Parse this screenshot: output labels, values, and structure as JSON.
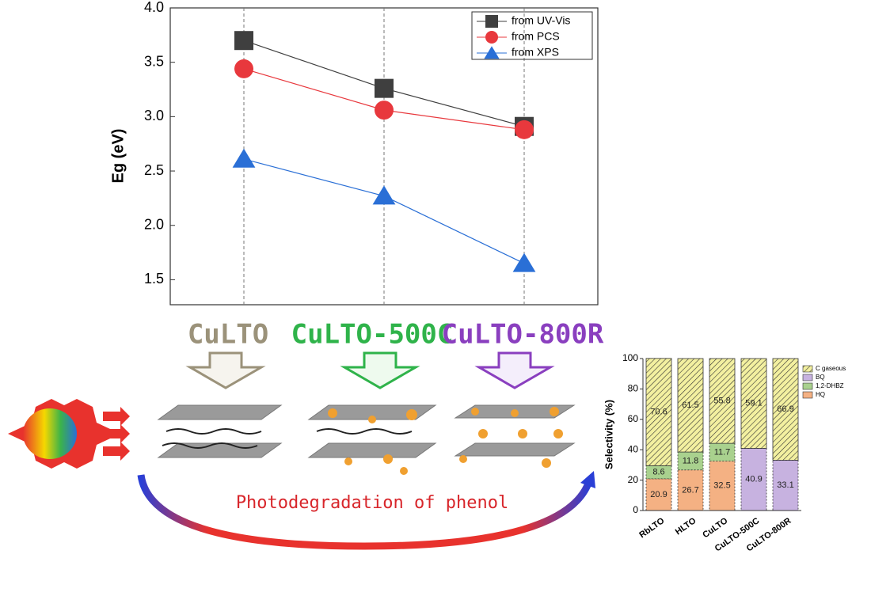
{
  "chart_data": [
    {
      "type": "line",
      "ylabel": "Eg (eV)",
      "categories": [
        null,
        null,
        null
      ],
      "ylim": [
        1.27,
        4.0
      ],
      "yticks": [
        1.5,
        {
          "value": 2,
          "label": "2.0"
        },
        2.5,
        {
          "value": 3,
          "label": "3.0"
        },
        3.5,
        {
          "value": 4,
          "label": "4.0"
        }
      ],
      "grid": true,
      "legend": "upper right",
      "series": [
        {
          "name": "from UV-Vis",
          "color": "#3f3f3f",
          "marker": "square",
          "values": [
            3.7,
            3.26,
            2.91
          ]
        },
        {
          "name": "from PCS",
          "color": "#e8383d",
          "marker": "circle",
          "values": [
            3.44,
            3.06,
            2.88
          ]
        },
        {
          "name": "from XPS",
          "color": "#2a6fd6",
          "marker": "triangle",
          "values": [
            2.61,
            2.27,
            1.65
          ]
        }
      ]
    },
    {
      "type": "bar",
      "stacked": true,
      "ylabel": "Selectivity (%)",
      "categories": [
        "RbLTO",
        "HLTO",
        "CuLTO",
        "CuLTO-500C",
        "CuLTO-800R"
      ],
      "ylim": [
        0,
        100
      ],
      "yticks": [
        0,
        20,
        40,
        60,
        80,
        100
      ],
      "legend": "right",
      "series": [
        {
          "name": "HQ",
          "color": "#f4b183",
          "values": [
            20.9,
            26.7,
            32.5,
            0,
            0
          ]
        },
        {
          "name": "1,2-DHBZ",
          "color": "#a9d18e",
          "values": [
            8.6,
            11.8,
            11.7,
            0,
            0
          ]
        },
        {
          "name": "BQ",
          "color": "#c7b2e0",
          "values": [
            0,
            0,
            0,
            40.9,
            33.1
          ]
        },
        {
          "name": "C gaseous",
          "color": "#f3f0a0",
          "values": [
            70.6,
            61.5,
            55.8,
            59.1,
            66.9
          ]
        }
      ]
    }
  ],
  "diagram": {
    "materials": [
      "CuLTO",
      "CuLTO-500C",
      "CuLTO-800R"
    ],
    "caption": "Photodegradation of phenol"
  }
}
